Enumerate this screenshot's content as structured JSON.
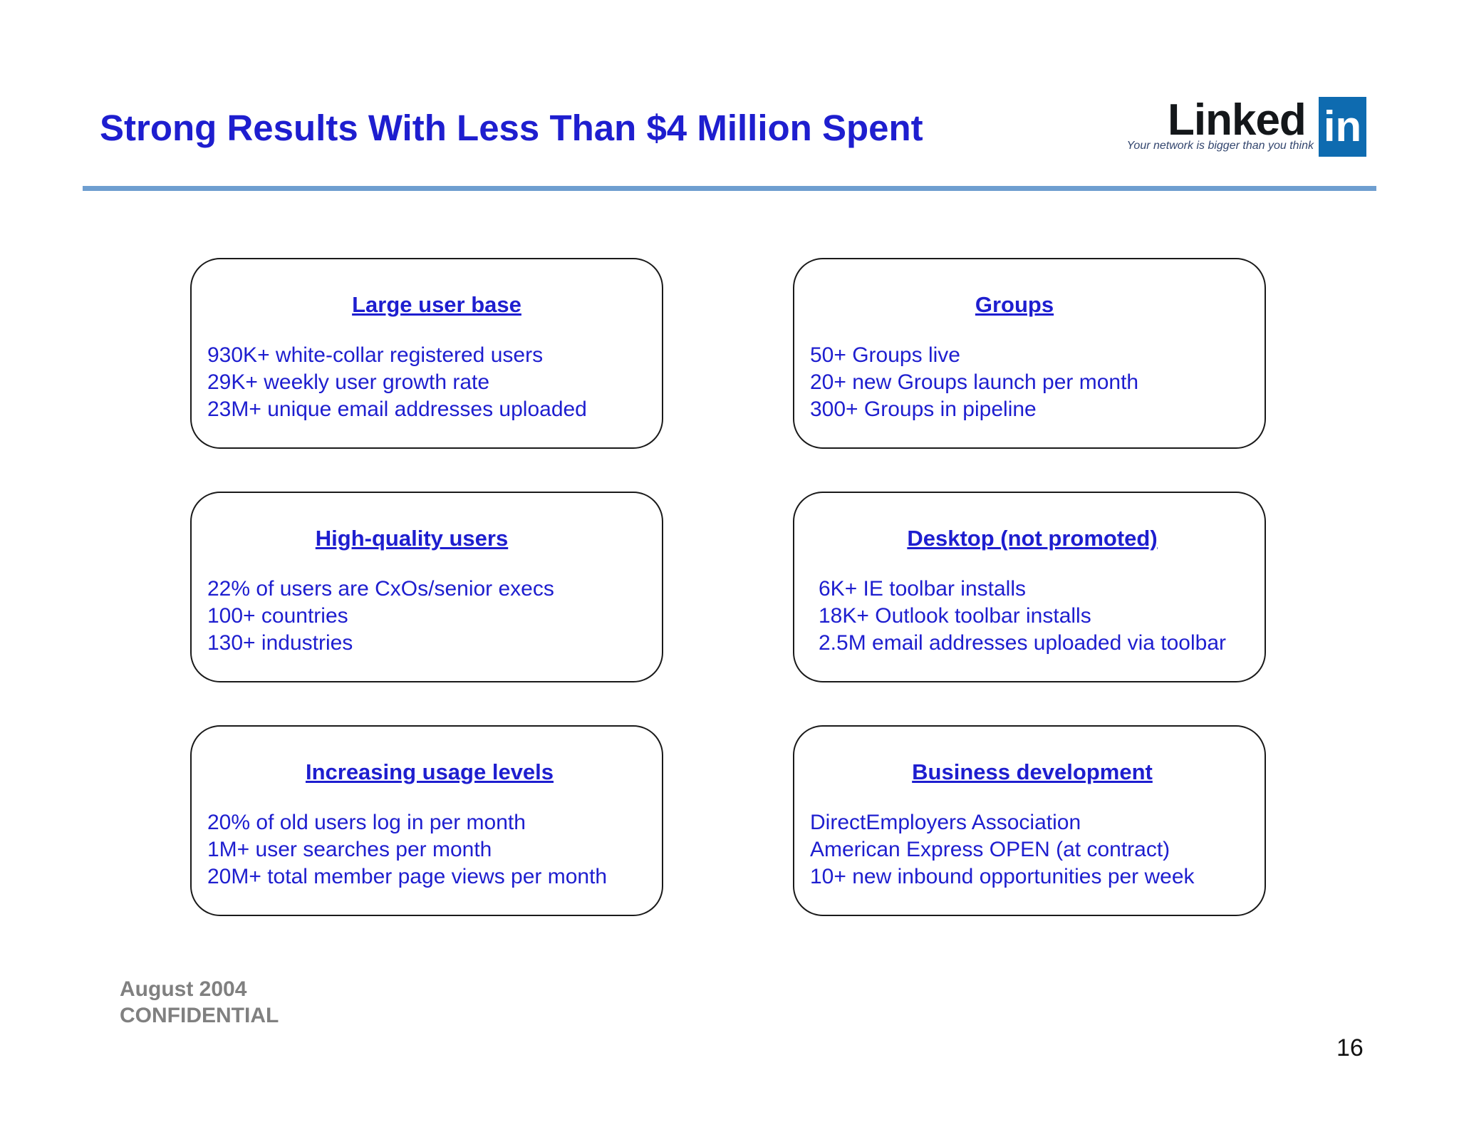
{
  "title": "Strong Results With Less Than $4 Million Spent",
  "logo": {
    "word": "Linked",
    "box": "in",
    "tagline": "Your network is bigger than you think",
    "color": "#0e6bb0"
  },
  "cards": [
    {
      "heading": "Large user base",
      "items": [
        "930K+ white-collar registered users",
        "29K+ weekly user growth rate",
        "23M+ unique email addresses uploaded"
      ]
    },
    {
      "heading": "Groups",
      "items": [
        "50+ Groups live",
        "20+ new Groups launch per month",
        "300+ Groups in pipeline"
      ]
    },
    {
      "heading": "High-quality users",
      "items": [
        "22% of users are CxOs/senior execs",
        "100+ countries",
        "130+ industries"
      ]
    },
    {
      "heading": "Desktop (not promoted)",
      "items": [
        "6K+ IE toolbar installs",
        "18K+ Outlook toolbar installs",
        "2.5M email addresses uploaded via toolbar"
      ]
    },
    {
      "heading": "Increasing usage levels",
      "items": [
        "20% of old users log in per month",
        "1M+ user searches per month",
        "20M+ total member page views per month"
      ]
    },
    {
      "heading": "Business development",
      "items": [
        "DirectEmployers Association",
        "American Express OPEN (at contract)",
        "10+ new inbound opportunities per week"
      ]
    }
  ],
  "footer": {
    "date": "August 2004",
    "label": "CONFIDENTIAL"
  },
  "page_number": "16",
  "colors": {
    "text": "#1e1ecf",
    "rule": "#6e9ed0",
    "footer": "#808080"
  }
}
